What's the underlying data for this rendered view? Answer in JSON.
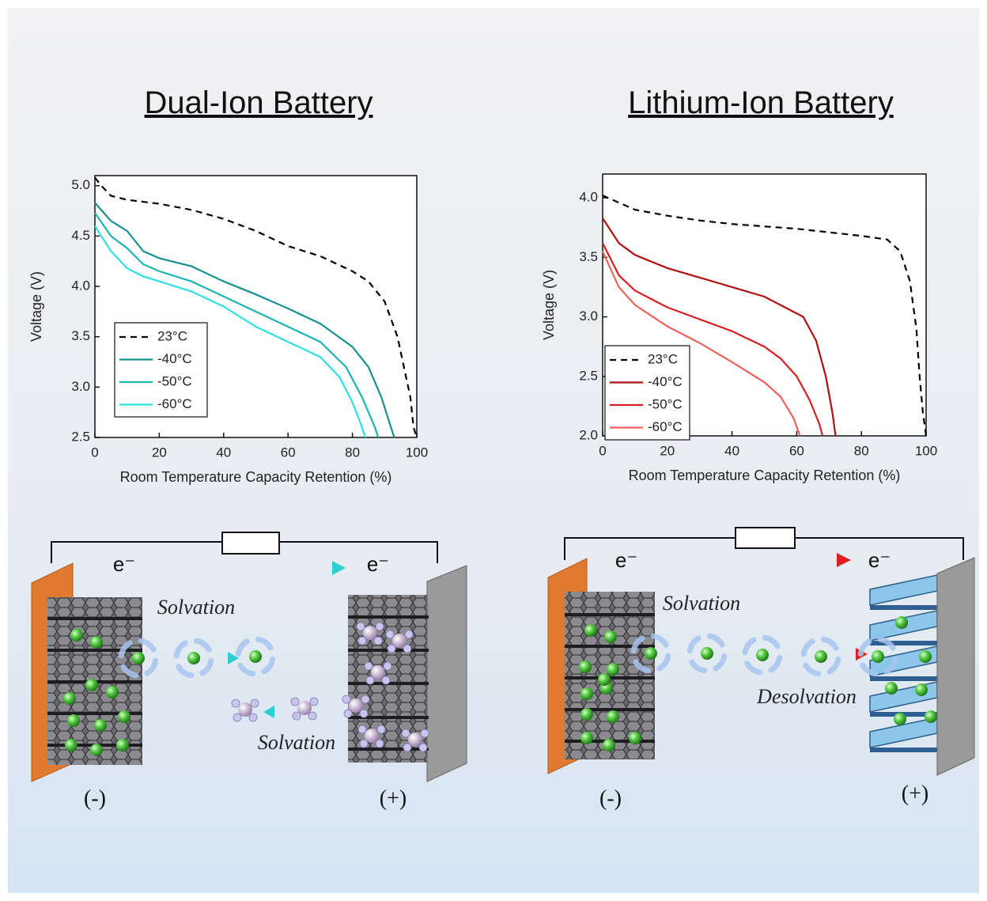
{
  "panels": [
    {
      "title": "Dual-Ion Battery"
    },
    {
      "title": "Lithium-Ion Battery"
    }
  ],
  "chart_data": [
    {
      "type": "line",
      "x_label": "Room Temperature Capacity Retention (%)",
      "y_label": "Voltage (V)",
      "xlim": [
        0,
        100
      ],
      "xticks": [
        0,
        20,
        40,
        60,
        80,
        100
      ],
      "ylim": [
        2.5,
        5.1
      ],
      "yticks": [
        2.5,
        {
          "value": 3,
          "label": "3.0"
        },
        3.5,
        {
          "value": 4,
          "label": "4.0"
        },
        4.5,
        {
          "value": 5,
          "label": "5.0"
        }
      ],
      "legend": "lower left",
      "series": [
        {
          "name": "23°C",
          "color": "#000000",
          "linestyle": "dashed",
          "x": [
            0,
            2,
            5,
            10,
            20,
            30,
            40,
            50,
            60,
            70,
            80,
            85,
            90,
            94,
            96,
            98,
            99,
            100
          ],
          "values": [
            5.08,
            5.0,
            4.9,
            4.86,
            4.82,
            4.76,
            4.67,
            4.55,
            4.4,
            4.3,
            4.15,
            4.05,
            3.85,
            3.5,
            3.2,
            2.9,
            2.6,
            2.5
          ]
        },
        {
          "name": "-40°C",
          "color": "#17918f",
          "linestyle": "solid",
          "x": [
            0,
            5,
            10,
            15,
            20,
            30,
            40,
            50,
            60,
            70,
            80,
            85,
            89,
            92,
            93
          ],
          "values": [
            4.83,
            4.65,
            4.55,
            4.35,
            4.28,
            4.2,
            4.05,
            3.92,
            3.78,
            3.63,
            3.4,
            3.2,
            2.9,
            2.6,
            2.5
          ]
        },
        {
          "name": "-50°C",
          "color": "#1ab5b0",
          "linestyle": "solid",
          "x": [
            0,
            5,
            10,
            15,
            20,
            30,
            40,
            50,
            60,
            70,
            78,
            83,
            87,
            88
          ],
          "values": [
            4.73,
            4.5,
            4.38,
            4.22,
            4.15,
            4.05,
            3.9,
            3.75,
            3.6,
            3.45,
            3.2,
            2.9,
            2.6,
            2.5
          ]
        },
        {
          "name": "-60°C",
          "color": "#2ee0e0",
          "linestyle": "solid",
          "x": [
            0,
            5,
            10,
            15,
            20,
            30,
            40,
            50,
            60,
            70,
            76,
            80,
            83,
            84
          ],
          "values": [
            4.6,
            4.35,
            4.18,
            4.1,
            4.05,
            3.95,
            3.8,
            3.6,
            3.45,
            3.3,
            3.1,
            2.85,
            2.6,
            2.5
          ]
        }
      ]
    },
    {
      "type": "line",
      "x_label": "Room Temperature Capacity Retention (%)",
      "y_label": "Voltage (V)",
      "xlim": [
        0,
        100
      ],
      "xticks": [
        0,
        20,
        40,
        60,
        80,
        100
      ],
      "ylim": [
        2.0,
        4.2
      ],
      "yticks": [
        {
          "value": 2,
          "label": "2.0"
        },
        2.5,
        {
          "value": 3,
          "label": "3.0"
        },
        3.5,
        {
          "value": 4,
          "label": "4.0"
        }
      ],
      "legend": "lower left",
      "series": [
        {
          "name": "23°C",
          "color": "#000000",
          "linestyle": "dashed",
          "x": [
            0,
            10,
            20,
            30,
            40,
            50,
            60,
            70,
            80,
            88,
            92,
            95,
            97,
            98,
            99,
            100
          ],
          "values": [
            4.02,
            3.9,
            3.85,
            3.81,
            3.78,
            3.76,
            3.74,
            3.71,
            3.68,
            3.65,
            3.55,
            3.3,
            2.9,
            2.5,
            2.2,
            2.0
          ]
        },
        {
          "name": "-40°C",
          "color": "#b01010",
          "linestyle": "solid",
          "x": [
            0,
            5,
            10,
            20,
            30,
            40,
            50,
            62,
            66,
            69,
            71,
            72
          ],
          "values": [
            3.83,
            3.62,
            3.52,
            3.41,
            3.33,
            3.25,
            3.17,
            3.0,
            2.8,
            2.5,
            2.2,
            2.0
          ]
        },
        {
          "name": "-50°C",
          "color": "#d42020",
          "linestyle": "solid",
          "x": [
            0,
            5,
            10,
            20,
            30,
            40,
            50,
            55,
            60,
            64,
            67,
            68
          ],
          "values": [
            3.62,
            3.35,
            3.22,
            3.08,
            2.98,
            2.88,
            2.75,
            2.65,
            2.5,
            2.3,
            2.1,
            2.0
          ]
        },
        {
          "name": "-60°C",
          "color": "#f0605a",
          "linestyle": "solid",
          "x": [
            0,
            5,
            10,
            20,
            30,
            40,
            50,
            55,
            59,
            61
          ],
          "values": [
            3.55,
            3.25,
            3.1,
            2.92,
            2.78,
            2.62,
            2.45,
            2.33,
            2.15,
            2.0
          ]
        }
      ]
    }
  ],
  "diagrams": [
    {
      "electron_labels": [
        "e⁻",
        "e⁻"
      ],
      "process_labels": [
        "Solvation",
        "Solvation"
      ],
      "electrode_labels": [
        "(-)",
        "(+)"
      ]
    },
    {
      "electron_labels": [
        "e⁻",
        "e⁻"
      ],
      "process_labels": [
        "Solvation",
        "Desolvation"
      ],
      "electrode_labels": [
        "(-)",
        "(+)"
      ]
    }
  ]
}
